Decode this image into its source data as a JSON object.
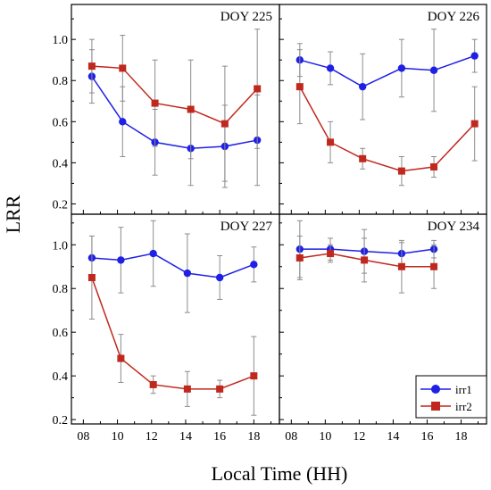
{
  "figure": {
    "ylabel": "LRR",
    "xlabel": "Local Time (HH)"
  },
  "legend": {
    "items": [
      {
        "name": "irr1",
        "color": "#1f1fe6",
        "marker": "circle"
      },
      {
        "name": "irr2",
        "color": "#c0281e",
        "marker": "square"
      }
    ],
    "placement": "bottom-right of DOY 234 panel"
  },
  "chart_data": [
    {
      "type": "line",
      "title": "DOY 225",
      "ylim": [
        0.15,
        1.17
      ],
      "xlim": [
        7.3,
        19.5
      ],
      "yticks": [
        "0.2",
        "0.4",
        "0.6",
        "0.8",
        "1.0"
      ],
      "xticks": [],
      "series": [
        {
          "name": "irr1",
          "color": "#1f1fe6",
          "marker": "circle",
          "x": [
            8.5,
            10.3,
            12.2,
            14.3,
            16.3,
            18.2
          ],
          "y": [
            0.82,
            0.6,
            0.5,
            0.47,
            0.48,
            0.51
          ],
          "err": [
            0.13,
            0.17,
            0.16,
            0.18,
            0.2,
            0.22
          ]
        },
        {
          "name": "irr2",
          "color": "#c0281e",
          "marker": "square",
          "x": [
            8.5,
            10.3,
            12.2,
            14.3,
            16.3,
            18.2
          ],
          "y": [
            0.87,
            0.86,
            0.69,
            0.66,
            0.59,
            0.76
          ],
          "err": [
            0.13,
            0.16,
            0.21,
            0.24,
            0.28,
            0.29
          ]
        }
      ]
    },
    {
      "type": "line",
      "title": "DOY 226",
      "ylim": [
        0.15,
        1.17
      ],
      "xlim": [
        7.3,
        19.5
      ],
      "yticks": [],
      "xticks": [],
      "series": [
        {
          "name": "irr1",
          "color": "#1f1fe6",
          "marker": "circle",
          "x": [
            8.5,
            10.3,
            12.2,
            14.5,
            16.4,
            18.8
          ],
          "y": [
            0.9,
            0.86,
            0.77,
            0.86,
            0.85,
            0.92
          ],
          "err": [
            0.08,
            0.08,
            0.16,
            0.14,
            0.2,
            0.08
          ]
        },
        {
          "name": "irr2",
          "color": "#c0281e",
          "marker": "square",
          "x": [
            8.5,
            10.3,
            12.2,
            14.5,
            16.4,
            18.8
          ],
          "y": [
            0.77,
            0.5,
            0.42,
            0.36,
            0.38,
            0.59
          ],
          "err": [
            0.18,
            0.1,
            0.05,
            0.07,
            0.05,
            0.18
          ]
        }
      ]
    },
    {
      "type": "line",
      "title": "DOY 227",
      "ylim": [
        0.18,
        1.14
      ],
      "xlim": [
        7.3,
        19.5
      ],
      "yticks": [
        "0.2",
        "0.4",
        "0.6",
        "0.8",
        "1.0"
      ],
      "xticks": [
        "08",
        "10",
        "12",
        "14",
        "16",
        "18"
      ],
      "series": [
        {
          "name": "irr1",
          "color": "#1f1fe6",
          "marker": "circle",
          "x": [
            8.5,
            10.2,
            12.1,
            14.1,
            16.0,
            18.0
          ],
          "y": [
            0.94,
            0.93,
            0.96,
            0.87,
            0.85,
            0.91
          ],
          "err": [
            0.1,
            0.15,
            0.15,
            0.18,
            0.1,
            0.08
          ]
        },
        {
          "name": "irr2",
          "color": "#c0281e",
          "marker": "square",
          "x": [
            8.5,
            10.2,
            12.1,
            14.1,
            16.0,
            18.0
          ],
          "y": [
            0.85,
            0.48,
            0.36,
            0.34,
            0.34,
            0.4
          ],
          "err": [
            0.19,
            0.11,
            0.04,
            0.08,
            0.04,
            0.18
          ]
        }
      ]
    },
    {
      "type": "line",
      "title": "DOY 234",
      "ylim": [
        0.18,
        1.14
      ],
      "xlim": [
        7.3,
        19.5
      ],
      "yticks": [],
      "xticks": [
        "08",
        "10",
        "12",
        "14",
        "16",
        "18"
      ],
      "series": [
        {
          "name": "irr1",
          "color": "#1f1fe6",
          "marker": "circle",
          "x": [
            8.5,
            10.3,
            12.3,
            14.5,
            16.4
          ],
          "y": [
            0.98,
            0.98,
            0.97,
            0.96,
            0.98
          ],
          "err": [
            0.13,
            0.05,
            0.1,
            0.05,
            0.04
          ]
        },
        {
          "name": "irr2",
          "color": "#c0281e",
          "marker": "square",
          "x": [
            8.5,
            10.3,
            12.3,
            14.5,
            16.4
          ],
          "y": [
            0.94,
            0.96,
            0.93,
            0.9,
            0.9
          ],
          "err": [
            0.1,
            0.04,
            0.1,
            0.12,
            0.1
          ]
        }
      ]
    }
  ]
}
